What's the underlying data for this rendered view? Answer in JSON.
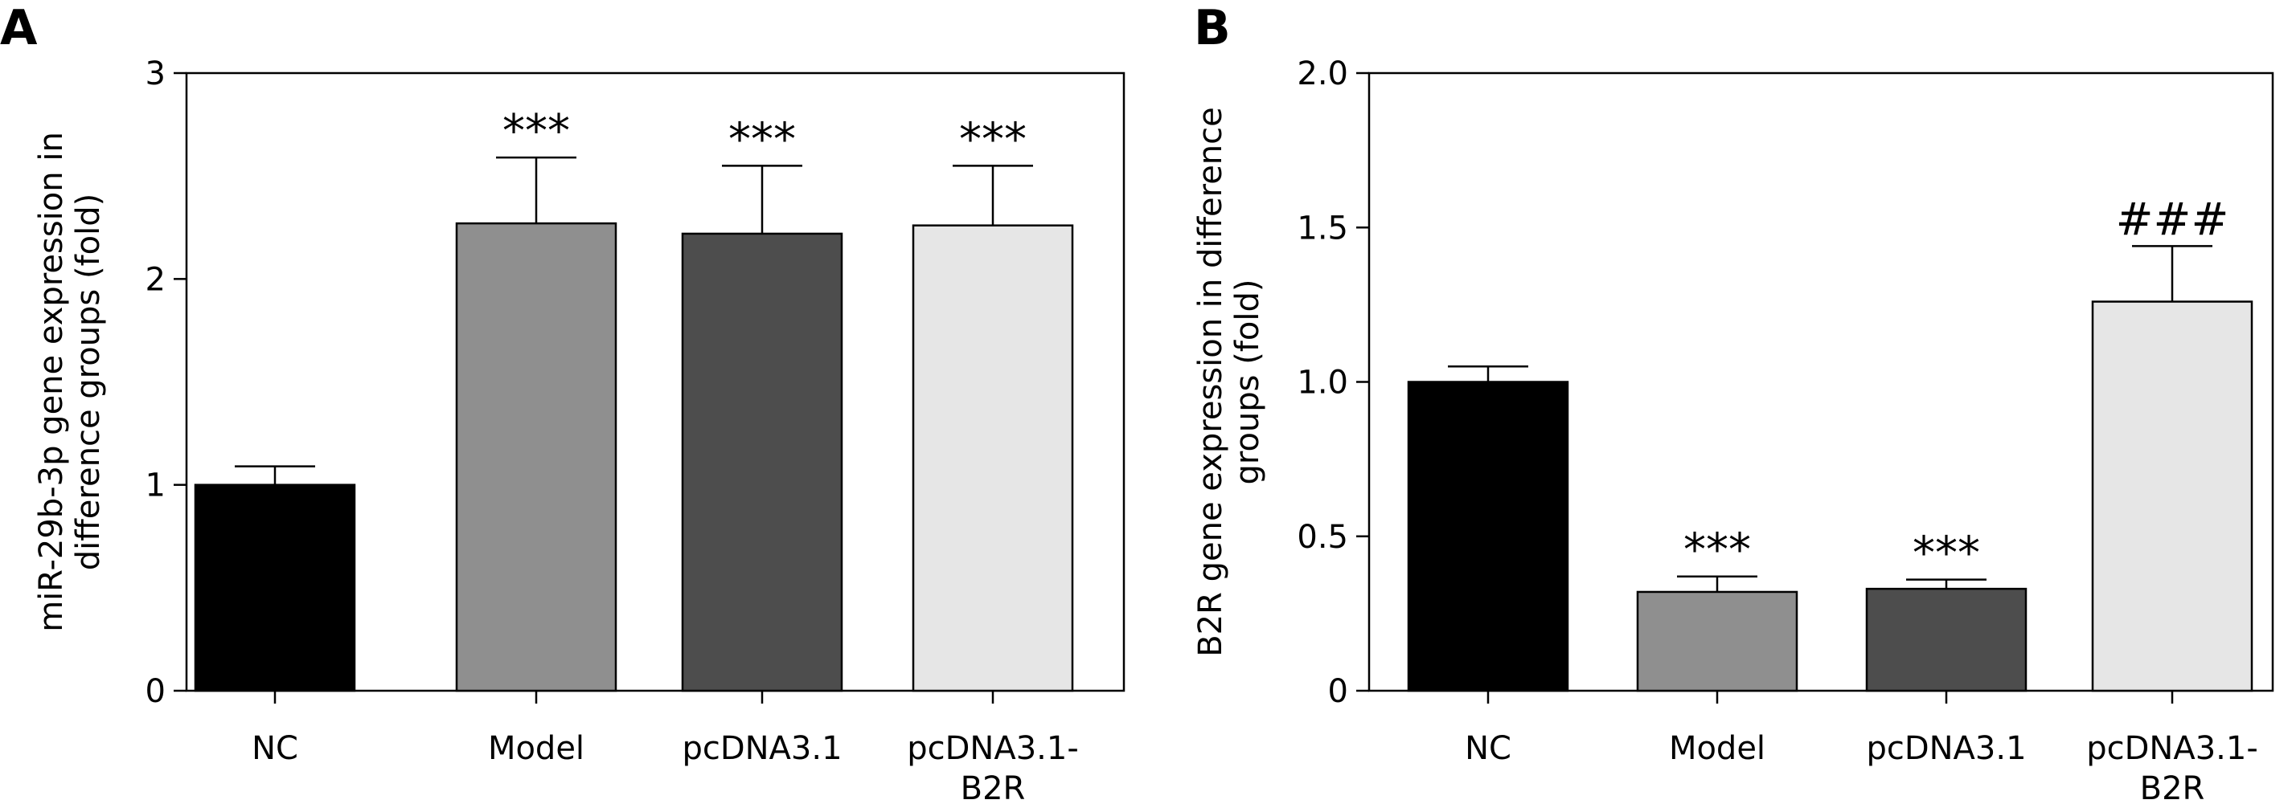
{
  "chart_data": [
    {
      "panel": "A",
      "type": "bar",
      "categories": [
        "NC",
        "Model",
        "pcDNA3.1",
        "pcDNA3.1-\nB2R"
      ],
      "values": [
        1.0,
        2.27,
        2.22,
        2.26
      ],
      "errors": [
        0.09,
        0.32,
        0.33,
        0.29
      ],
      "annotations": [
        "",
        "***",
        "***",
        "***"
      ],
      "bar_colors": [
        "#000000",
        "#8f8f8f",
        "#4d4d4d",
        "#e6e6e6"
      ],
      "ylabel": "miR-29b-3p gene expression in\ndifference groups (fold)",
      "ylim": [
        0,
        3
      ],
      "yticks": [
        0,
        1,
        2,
        3
      ],
      "ytick_labels": [
        "0",
        "1",
        "2",
        "3"
      ],
      "grid": false
    },
    {
      "panel": "B",
      "type": "bar",
      "categories": [
        "NC",
        "Model",
        "pcDNA3.1",
        "pcDNA3.1-\nB2R"
      ],
      "values": [
        1.0,
        0.32,
        0.33,
        1.26
      ],
      "errors": [
        0.05,
        0.05,
        0.03,
        0.18
      ],
      "annotations": [
        "",
        "***",
        "***",
        "###"
      ],
      "bar_colors": [
        "#000000",
        "#8f8f8f",
        "#4d4d4d",
        "#e6e6e6"
      ],
      "ylabel": "B2R gene expression in difference\ngroups (fold)",
      "ylim": [
        0,
        2.0
      ],
      "yticks": [
        0,
        0.5,
        1.0,
        1.5,
        2.0
      ],
      "ytick_labels": [
        "0",
        "0.5",
        "1.0",
        "1.5",
        "2.0"
      ],
      "grid": false
    }
  ]
}
